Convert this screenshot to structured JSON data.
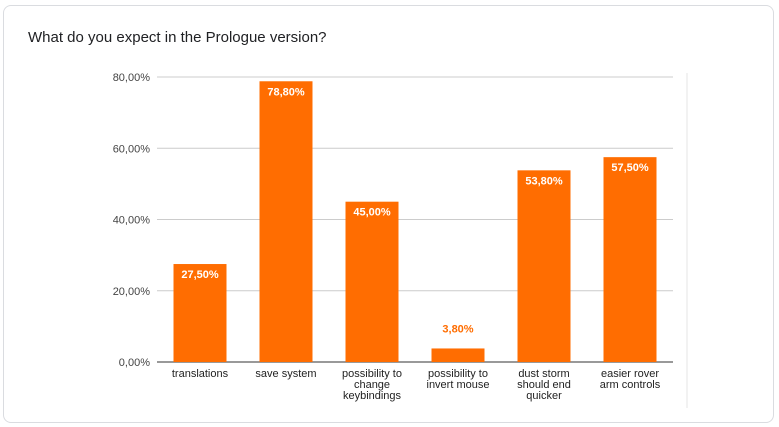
{
  "question": {
    "title": "What do you expect in the Prologue version?"
  },
  "colors": {
    "bar": "#ff6d01",
    "inside_label": "#ffffff",
    "outside_label": "#ff6d01",
    "grid": "#cccccc",
    "axis": "#333333"
  },
  "chart_data": {
    "type": "bar",
    "title": "",
    "xlabel": "",
    "ylabel": "",
    "ylim": [
      0,
      80
    ],
    "grid": true,
    "y_ticks": [
      {
        "value": 0,
        "label": "0,00%"
      },
      {
        "value": 20,
        "label": "20,00%"
      },
      {
        "value": 40,
        "label": "40,00%"
      },
      {
        "value": 60,
        "label": "60,00%"
      },
      {
        "value": 80,
        "label": "80,00%"
      }
    ],
    "categories": [
      [
        "translations"
      ],
      [
        "save system"
      ],
      [
        "possibility to",
        "change",
        "keybindings"
      ],
      [
        "possibility to",
        "invert mouse"
      ],
      [
        "dust storm",
        "should end",
        "quicker"
      ],
      [
        "easier rover",
        "arm controls"
      ]
    ],
    "values": [
      27.5,
      78.8,
      45.0,
      3.8,
      53.8,
      57.5
    ],
    "value_labels": [
      "27,50%",
      "78,80%",
      "45,00%",
      "3,80%",
      "53,80%",
      "57,50%"
    ]
  }
}
